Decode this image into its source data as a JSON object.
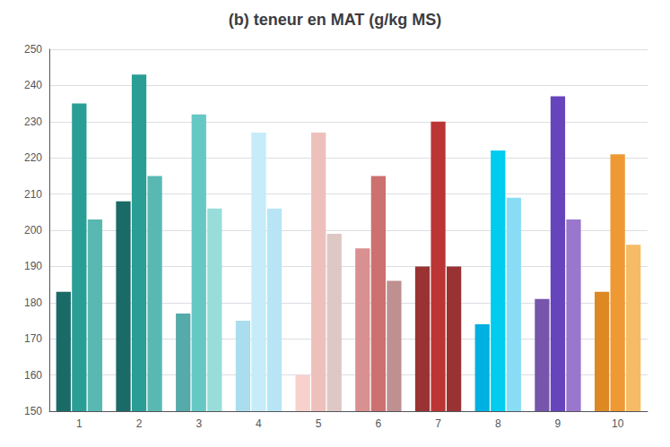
{
  "chart_data": {
    "type": "bar",
    "title": "(b) teneur en MAT (g/kg MS)",
    "categories": [
      "1",
      "2",
      "3",
      "4",
      "5",
      "6",
      "7",
      "8",
      "9",
      "10"
    ],
    "series": [
      {
        "values": [
          183,
          208,
          177,
          175,
          160,
          195,
          190,
          174,
          181,
          183
        ],
        "colors": [
          "#1a6b68",
          "#1a6b68",
          "#55aaaa",
          "#aaddee",
          "#f8d0cc",
          "#d99090",
          "#993333",
          "#00b0e0",
          "#7755aa",
          "#dd8822"
        ]
      },
      {
        "values": [
          235,
          243,
          232,
          227,
          227,
          215,
          230,
          222,
          237,
          221
        ],
        "colors": [
          "#2a9d95",
          "#2a9d95",
          "#66c8c5",
          "#c5ecf8",
          "#eec0bc",
          "#cc7070",
          "#bb3535",
          "#00ccf0",
          "#6644bb",
          "#ee9933"
        ]
      },
      {
        "values": [
          203,
          215,
          206,
          206,
          199,
          186,
          190,
          209,
          203,
          196
        ],
        "colors": [
          "#5ab8b2",
          "#5ab8b2",
          "#99ddda",
          "#b8e5f5",
          "#ddc8c5",
          "#bf9090",
          "#993333",
          "#88ddf5",
          "#9977cc",
          "#f5bb66"
        ]
      }
    ],
    "ylim": [
      150,
      250
    ],
    "yticks": [
      150,
      160,
      170,
      180,
      190,
      200,
      210,
      220,
      230,
      240,
      250
    ],
    "grid": true
  }
}
